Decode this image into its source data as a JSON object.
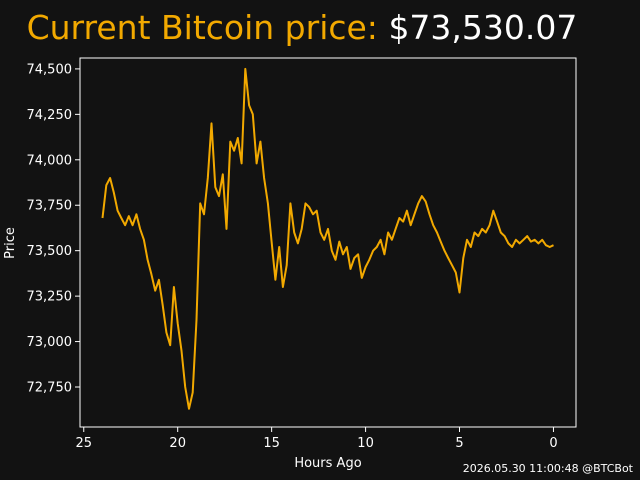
{
  "header": {
    "title_label": "Current Bitcoin price:",
    "title_value": "$73,530.07"
  },
  "footer": {
    "timestamp": "2026.05.30 11:00:48",
    "handle": "@BTCBot"
  },
  "colors": {
    "background": "#121212",
    "line": "#f2a900",
    "axes": "#ffffff",
    "title_label": "#f2a900"
  },
  "chart_data": {
    "type": "line",
    "title": "Current Bitcoin price: $73,530.07",
    "xlabel": "Hours Ago",
    "ylabel": "Price",
    "x_reversed": true,
    "xlim": [
      25.2,
      -1.2
    ],
    "ylim": [
      72530,
      74560
    ],
    "xticks": [
      25,
      20,
      15,
      10,
      5,
      0
    ],
    "yticks": [
      72750,
      73000,
      73250,
      73500,
      73750,
      74000,
      74250,
      74500
    ],
    "ytick_labels": [
      "72,750",
      "73,000",
      "73,250",
      "73,500",
      "73,750",
      "74,000",
      "74,250",
      "74,500"
    ],
    "grid": false,
    "legend": "none",
    "series": [
      {
        "x": [
          24.0,
          23.8,
          23.6,
          23.4,
          23.2,
          23.0,
          22.8,
          22.6,
          22.4,
          22.2,
          22.0,
          21.8,
          21.6,
          21.4,
          21.2,
          21.0,
          20.8,
          20.6,
          20.4,
          20.2,
          20.0,
          19.8,
          19.6,
          19.4,
          19.2,
          19.0,
          18.8,
          18.6,
          18.4,
          18.2,
          18.0,
          17.8,
          17.6,
          17.4,
          17.2,
          17.0,
          16.8,
          16.6,
          16.4,
          16.2,
          16.0,
          15.8,
          15.6,
          15.4,
          15.2,
          15.0,
          14.8,
          14.6,
          14.4,
          14.2,
          14.0,
          13.8,
          13.6,
          13.4,
          13.2,
          13.0,
          12.8,
          12.6,
          12.4,
          12.2,
          12.0,
          11.8,
          11.6,
          11.4,
          11.2,
          11.0,
          10.8,
          10.6,
          10.4,
          10.2,
          10.0,
          9.8,
          9.6,
          9.4,
          9.2,
          9.0,
          8.8,
          8.6,
          8.4,
          8.2,
          8.0,
          7.8,
          7.6,
          7.4,
          7.2,
          7.0,
          6.8,
          6.6,
          6.4,
          6.2,
          6.0,
          5.8,
          5.6,
          5.4,
          5.2,
          5.0,
          4.8,
          4.6,
          4.4,
          4.2,
          4.0,
          3.8,
          3.6,
          3.4,
          3.2,
          3.0,
          2.8,
          2.6,
          2.4,
          2.2,
          2.0,
          1.8,
          1.6,
          1.4,
          1.2,
          1.0,
          0.8,
          0.6,
          0.4,
          0.2,
          0.0
        ],
        "y": [
          73680,
          73860,
          73900,
          73820,
          73720,
          73680,
          73640,
          73690,
          73640,
          73700,
          73620,
          73560,
          73450,
          73370,
          73280,
          73340,
          73200,
          73050,
          72980,
          73300,
          73100,
          72950,
          72750,
          72630,
          72720,
          73120,
          73760,
          73700,
          73900,
          74200,
          73850,
          73800,
          73920,
          73620,
          74100,
          74050,
          74120,
          73980,
          74500,
          74300,
          74250,
          73980,
          74100,
          73900,
          73760,
          73550,
          73340,
          73520,
          73300,
          73420,
          73760,
          73600,
          73540,
          73620,
          73760,
          73740,
          73700,
          73720,
          73600,
          73560,
          73620,
          73500,
          73450,
          73550,
          73480,
          73520,
          73400,
          73460,
          73480,
          73350,
          73410,
          73450,
          73500,
          73520,
          73560,
          73480,
          73600,
          73560,
          73620,
          73680,
          73660,
          73720,
          73640,
          73700,
          73760,
          73800,
          73770,
          73700,
          73640,
          73600,
          73550,
          73500,
          73460,
          73420,
          73380,
          73270,
          73460,
          73560,
          73520,
          73600,
          73580,
          73620,
          73600,
          73640,
          73720,
          73660,
          73600,
          73580,
          73540,
          73520,
          73560,
          73540,
          73560,
          73580,
          73550,
          73560,
          73540,
          73560,
          73530,
          73520,
          73530
        ]
      }
    ]
  }
}
